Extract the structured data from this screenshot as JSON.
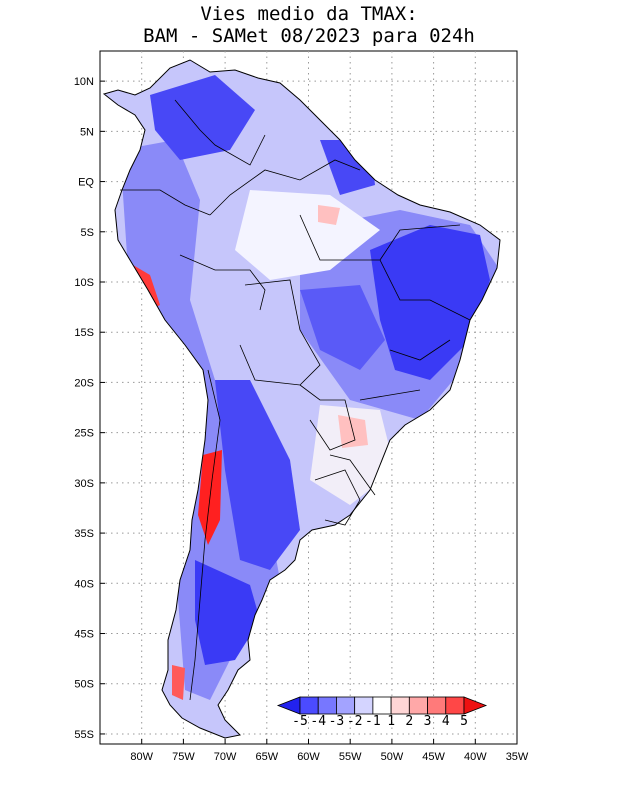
{
  "title": {
    "line1": "Vies medio da TMAX:",
    "line2": "BAM - SAMet 08/2023  para 024h"
  },
  "map": {
    "lat_range": [
      -56,
      13
    ],
    "lon_range": [
      -85,
      -35
    ],
    "y_ticks": [
      {
        "lat": 10,
        "label": "10N"
      },
      {
        "lat": 5,
        "label": "5N"
      },
      {
        "lat": 0,
        "label": "EQ"
      },
      {
        "lat": -5,
        "label": "5S"
      },
      {
        "lat": -10,
        "label": "10S"
      },
      {
        "lat": -15,
        "label": "15S"
      },
      {
        "lat": -20,
        "label": "20S"
      },
      {
        "lat": -25,
        "label": "25S"
      },
      {
        "lat": -30,
        "label": "30S"
      },
      {
        "lat": -35,
        "label": "35S"
      },
      {
        "lat": -40,
        "label": "40S"
      },
      {
        "lat": -45,
        "label": "45S"
      },
      {
        "lat": -50,
        "label": "50S"
      },
      {
        "lat": -55,
        "label": "55S"
      }
    ],
    "x_ticks": [
      {
        "lon": -80,
        "label": "80W"
      },
      {
        "lon": -75,
        "label": "75W"
      },
      {
        "lon": -70,
        "label": "70W"
      },
      {
        "lon": -65,
        "label": "65W"
      },
      {
        "lon": -60,
        "label": "60W"
      },
      {
        "lon": -55,
        "label": "55W"
      },
      {
        "lon": -50,
        "label": "50W"
      },
      {
        "lon": -45,
        "label": "45W"
      },
      {
        "lon": -40,
        "label": "40W"
      },
      {
        "lon": -35,
        "label": "35W"
      }
    ]
  },
  "colorbar": {
    "colors": [
      "#2222ee",
      "#4b4bff",
      "#7777ff",
      "#a3a3ff",
      "#d4d4ff",
      "#ffffff",
      "#ffd6d6",
      "#ffa8a8",
      "#ff7a7a",
      "#ff4747",
      "#ee1111"
    ],
    "labels": [
      "-5",
      "-4",
      "-3",
      "-2",
      "-1",
      "1",
      "2",
      "3",
      "4",
      "5"
    ]
  }
}
